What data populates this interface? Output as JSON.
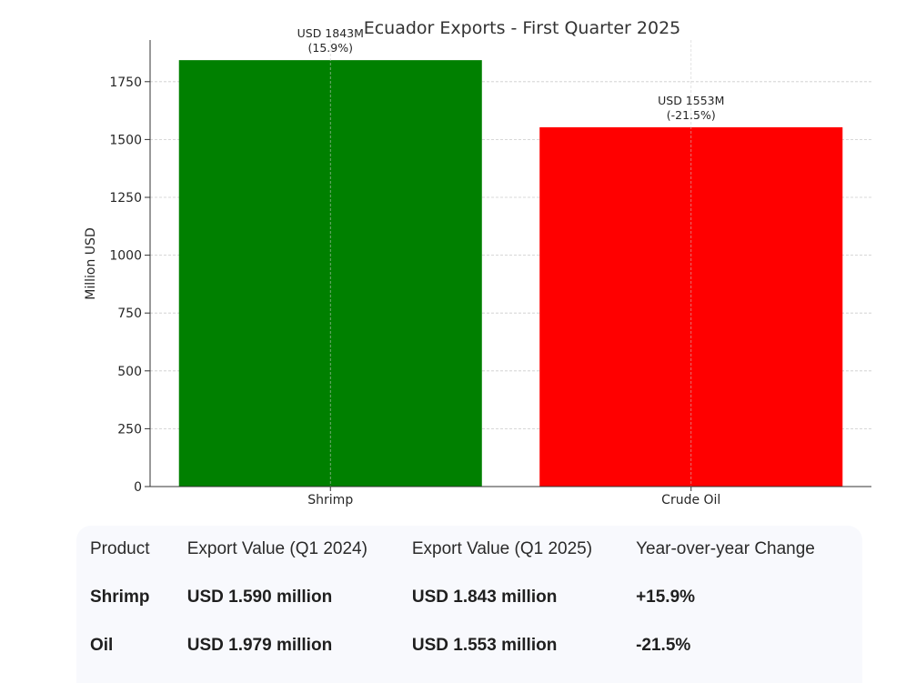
{
  "chart_data": {
    "type": "bar",
    "title": "Ecuador Exports - First Quarter 2025",
    "xlabel": "",
    "ylabel": "Million USD",
    "categories": [
      "Shrimp",
      "Crude Oil"
    ],
    "values": [
      1843,
      1553
    ],
    "bar_labels": [
      [
        "USD 1843M",
        "(15.9%)"
      ],
      [
        "USD 1553M",
        "(-21.5%)"
      ]
    ],
    "colors": [
      "#008000",
      "#ff0000"
    ],
    "ylim": [
      0,
      1930
    ],
    "yticks": [
      0,
      250,
      500,
      750,
      1000,
      1250,
      1500,
      1750
    ],
    "grid": true
  },
  "table": {
    "headers": [
      "Product",
      "Export Value (Q1 2024)",
      "Export Value (Q1 2025)",
      "Year-over-year Change"
    ],
    "rows": [
      [
        "Shrimp",
        "USD 1.590 million",
        "USD 1.843 million",
        "+15.9%"
      ],
      [
        "Oil",
        "USD 1.979 million",
        "USD 1.553 million",
        "-21.5%"
      ]
    ]
  }
}
